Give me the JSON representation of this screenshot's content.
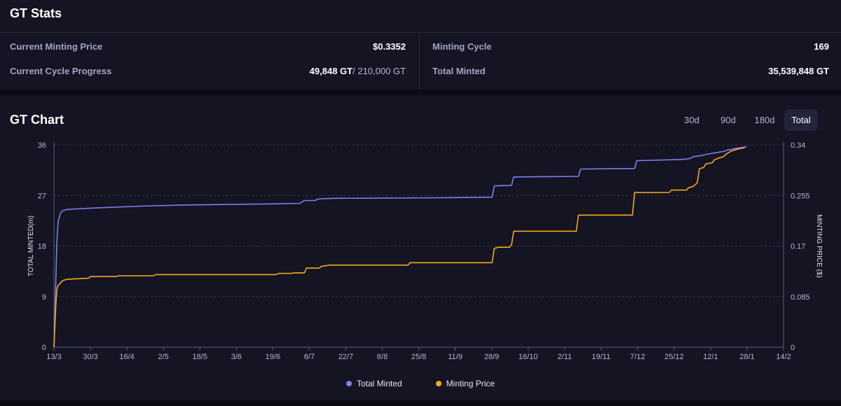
{
  "stats": {
    "title": "GT Stats",
    "current_minting_price_label": "Current Minting Price",
    "current_minting_price_value": "$0.3352",
    "current_cycle_progress_label": "Current Cycle Progress",
    "current_cycle_progress_value": "49,848 GT",
    "current_cycle_progress_total": "/ 210,000 GT",
    "minting_cycle_label": "Minting Cycle",
    "minting_cycle_value": "169",
    "total_minted_label": "Total Minted",
    "total_minted_value": "35,539,848 GT"
  },
  "chart_panel": {
    "title": "GT Chart",
    "ranges": [
      "30d",
      "90d",
      "180d",
      "Total"
    ],
    "active_range": "Total"
  },
  "chart_data": {
    "type": "line",
    "ylabel_left": "TOTAL MINTED(m)",
    "ylabel_right": "MINTING PRICE ($)",
    "ylim_left": [
      0,
      36
    ],
    "ylim_right": [
      0,
      0.34
    ],
    "yticks_left": [
      "0",
      "9",
      "18",
      "27",
      "36"
    ],
    "yticks_right": [
      "0",
      "0.085",
      "0.17",
      "0.255",
      "0.34"
    ],
    "x_ticks": [
      "13/3",
      "30/3",
      "16/4",
      "2/5",
      "18/5",
      "3/6",
      "19/6",
      "6/7",
      "22/7",
      "8/8",
      "25/8",
      "11/9",
      "28/9",
      "16/10",
      "2/11",
      "19/11",
      "7/12",
      "25/12",
      "12/1",
      "28/1",
      "14/2"
    ],
    "x_range_days": [
      0,
      338
    ],
    "grid": "horizontal dashed",
    "legend_position": "bottom",
    "series": [
      {
        "name": "Total Minted",
        "axis": "left",
        "color": "#7b7ff2",
        "points": [
          [
            0,
            0
          ],
          [
            0.4,
            5
          ],
          [
            0.8,
            11
          ],
          [
            1.2,
            17
          ],
          [
            1.6,
            20.5
          ],
          [
            2,
            22.5
          ],
          [
            3,
            23.8
          ],
          [
            4,
            24.3
          ],
          [
            6,
            24.5
          ],
          [
            10,
            24.6
          ],
          [
            20,
            24.8
          ],
          [
            40,
            25.1
          ],
          [
            60,
            25.3
          ],
          [
            80,
            25.4
          ],
          [
            90,
            25.45
          ],
          [
            100,
            25.5
          ],
          [
            114,
            25.6
          ],
          [
            115,
            25.9
          ],
          [
            116,
            26.1
          ],
          [
            121,
            26.1
          ],
          [
            122,
            26.3
          ],
          [
            123,
            26.4
          ],
          [
            130,
            26.5
          ],
          [
            180,
            26.6
          ],
          [
            203,
            26.7
          ],
          [
            204,
            28.7
          ],
          [
            212,
            28.8
          ],
          [
            213,
            30.3
          ],
          [
            243,
            30.4
          ],
          [
            244,
            31.7
          ],
          [
            269,
            31.8
          ],
          [
            270,
            33.2
          ],
          [
            290,
            33.4
          ],
          [
            295,
            33.6
          ],
          [
            296,
            33.9
          ],
          [
            298,
            34.0
          ],
          [
            300,
            34.1
          ],
          [
            302,
            34.3
          ],
          [
            305,
            34.5
          ],
          [
            308,
            34.7
          ],
          [
            311,
            34.9
          ],
          [
            312,
            35.1
          ],
          [
            314,
            35.2
          ],
          [
            316,
            35.4
          ],
          [
            318,
            35.5
          ],
          [
            320,
            35.6
          ],
          [
            321,
            35.7
          ]
        ]
      },
      {
        "name": "Minting Price",
        "axis": "right",
        "color": "#f5a623",
        "points": [
          [
            0,
            0
          ],
          [
            0.5,
            0.04
          ],
          [
            1,
            0.08
          ],
          [
            1.5,
            0.1
          ],
          [
            2,
            0.104
          ],
          [
            3,
            0.108
          ],
          [
            4,
            0.112
          ],
          [
            6,
            0.114
          ],
          [
            10,
            0.115
          ],
          [
            16,
            0.116
          ],
          [
            17,
            0.119
          ],
          [
            29,
            0.119
          ],
          [
            30,
            0.12
          ],
          [
            46,
            0.12
          ],
          [
            47,
            0.122
          ],
          [
            103,
            0.122
          ],
          [
            104,
            0.124
          ],
          [
            110,
            0.124
          ],
          [
            111,
            0.125
          ],
          [
            116,
            0.125
          ],
          [
            117,
            0.133
          ],
          [
            123,
            0.133
          ],
          [
            124,
            0.136
          ],
          [
            128,
            0.138
          ],
          [
            164,
            0.138
          ],
          [
            165,
            0.142
          ],
          [
            203,
            0.142
          ],
          [
            204,
            0.166
          ],
          [
            206,
            0.168
          ],
          [
            211,
            0.168
          ],
          [
            212,
            0.172
          ],
          [
            213,
            0.195
          ],
          [
            242,
            0.195
          ],
          [
            243,
            0.222
          ],
          [
            268,
            0.222
          ],
          [
            269,
            0.26
          ],
          [
            285,
            0.26
          ],
          [
            286,
            0.264
          ],
          [
            293,
            0.264
          ],
          [
            294,
            0.268
          ],
          [
            296,
            0.27
          ],
          [
            298,
            0.276
          ],
          [
            299,
            0.3
          ],
          [
            301,
            0.302
          ],
          [
            302,
            0.308
          ],
          [
            305,
            0.31
          ],
          [
            306,
            0.315
          ],
          [
            308,
            0.318
          ],
          [
            310,
            0.32
          ],
          [
            312,
            0.326
          ],
          [
            314,
            0.33
          ],
          [
            316,
            0.332
          ],
          [
            318,
            0.334
          ],
          [
            320,
            0.3352
          ]
        ]
      }
    ]
  }
}
